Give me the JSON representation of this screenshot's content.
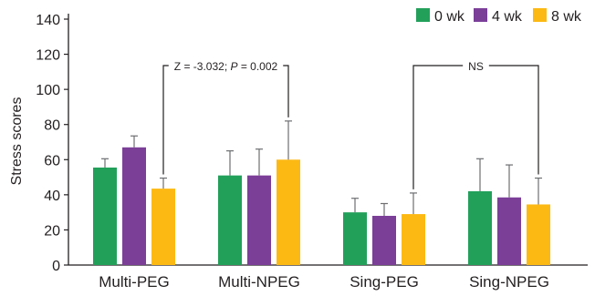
{
  "chart_data": {
    "type": "bar",
    "xlabel": "",
    "ylabel": "Stress scores",
    "ylim": [
      0,
      140
    ],
    "yticks": [
      0,
      20,
      40,
      60,
      80,
      100,
      120,
      140
    ],
    "categories": [
      "Multi-PEG",
      "Multi-NPEG",
      "Sing-PEG",
      "Sing-NPEG"
    ],
    "series": [
      {
        "name": "0 wk",
        "color": "#22a05a",
        "values": [
          55.5,
          51,
          30,
          42
        ],
        "error": [
          5,
          14,
          8,
          18.5
        ]
      },
      {
        "name": "4 wk",
        "color": "#7b3f98",
        "values": [
          67,
          51,
          28,
          38.5
        ],
        "error": [
          6.5,
          15,
          7,
          18.5
        ]
      },
      {
        "name": "8 wk",
        "color": "#fdb913",
        "values": [
          43.5,
          60,
          29,
          34.5
        ],
        "error": [
          6,
          22,
          12,
          15
        ]
      }
    ],
    "legend_position": "top-right",
    "annotations": [
      {
        "text_parts": [
          "Z = -3.032; ",
          "P",
          " = 0.002"
        ],
        "between": [
          [
            0,
            2
          ],
          [
            1,
            2
          ]
        ]
      },
      {
        "text_parts": [
          "NS"
        ],
        "between": [
          [
            2,
            2
          ],
          [
            3,
            2
          ]
        ]
      }
    ],
    "grid": false
  }
}
